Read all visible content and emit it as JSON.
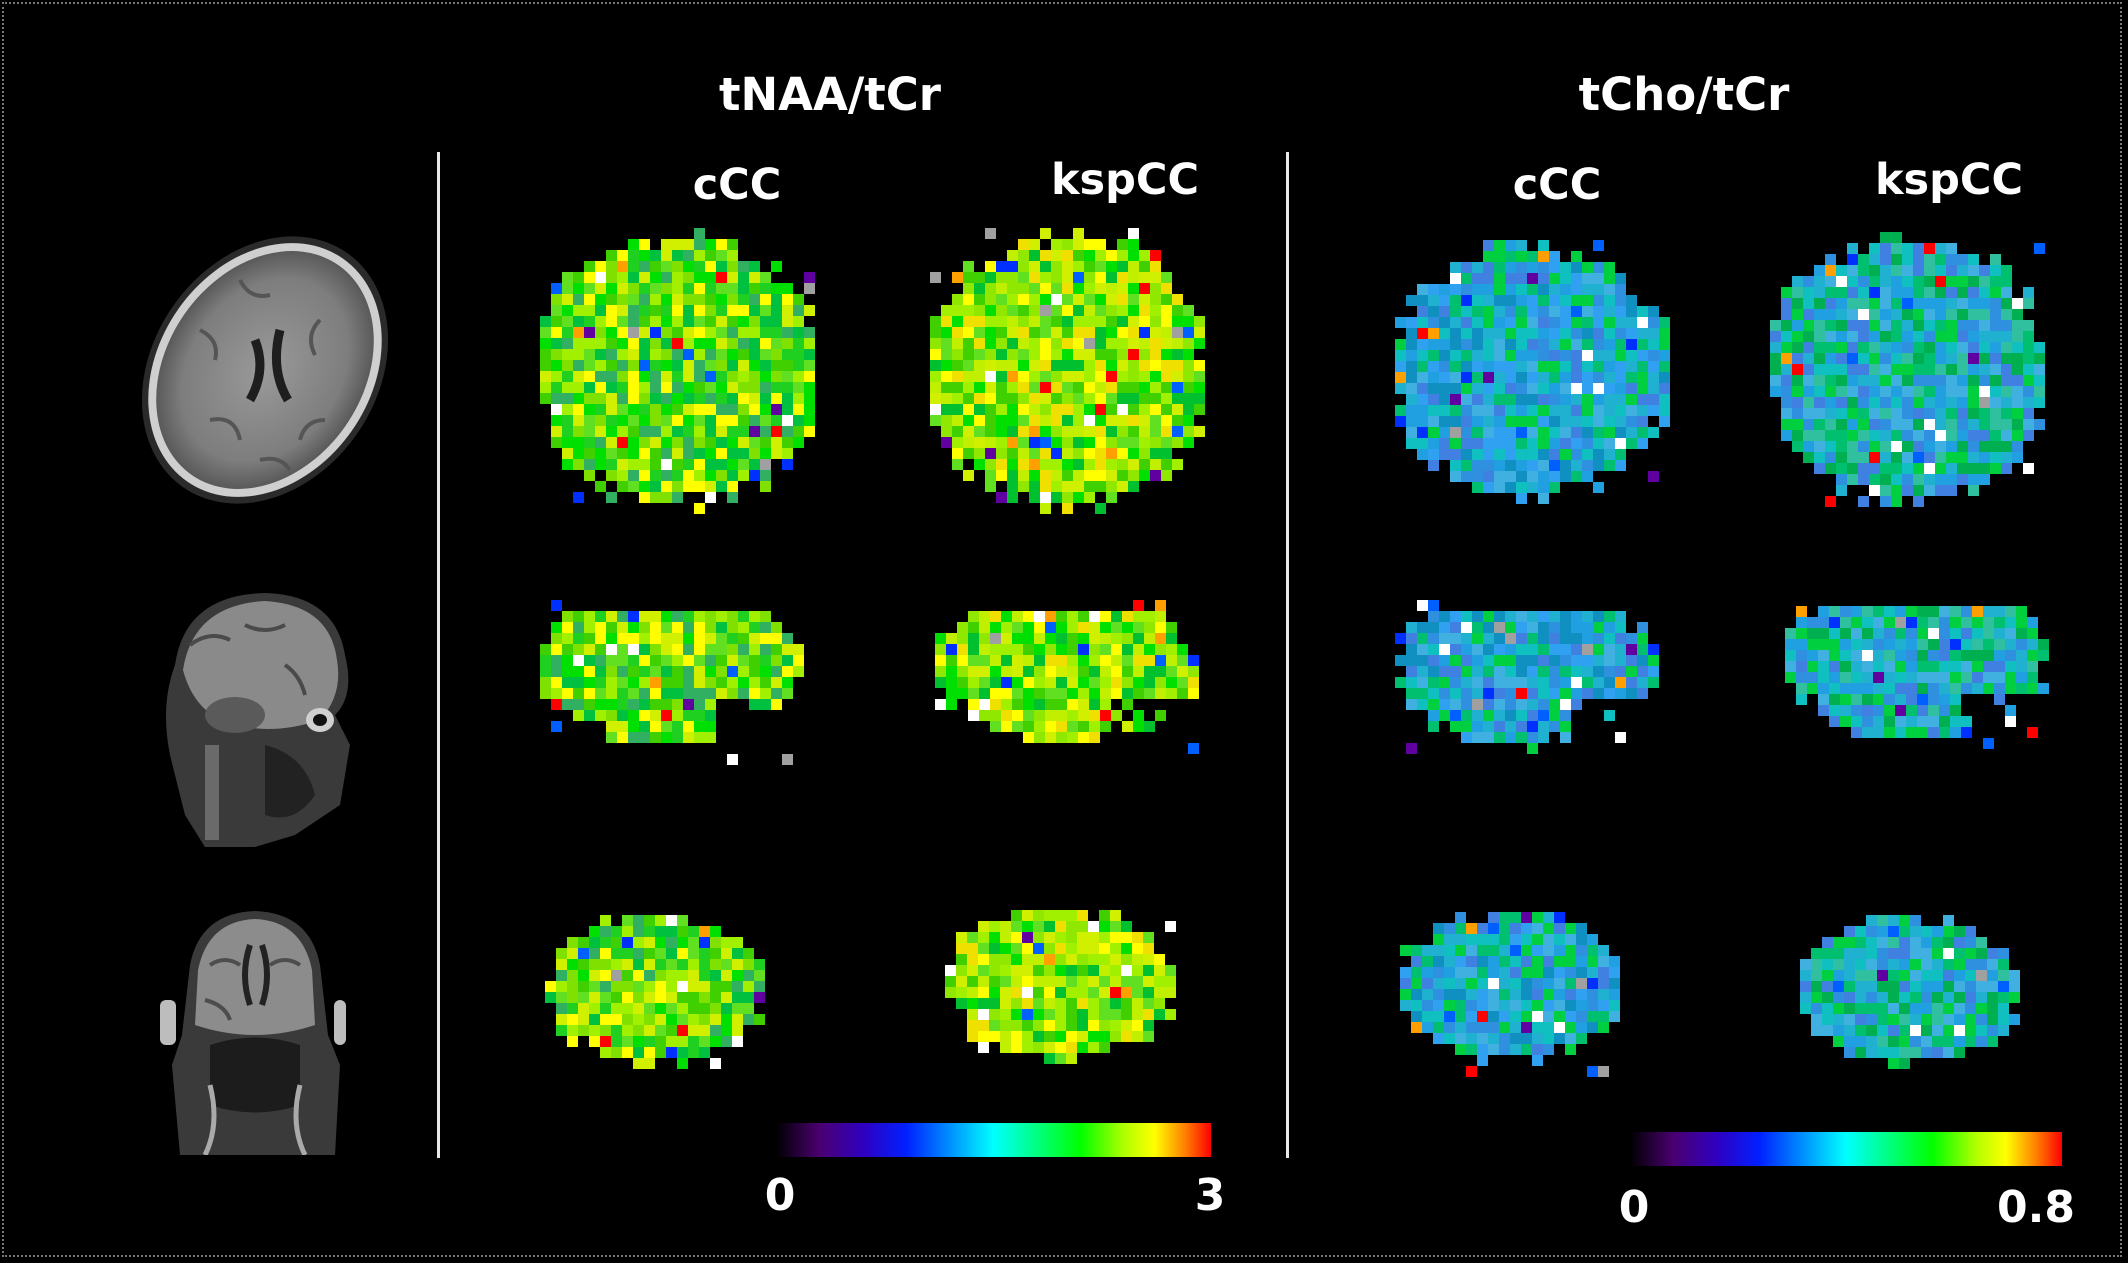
{
  "groups": [
    {
      "title": "tNAA/tCr",
      "columns": [
        "cCC",
        "kspCC"
      ],
      "colorbar": {
        "min": "0",
        "max": "3"
      }
    },
    {
      "title": "tCho/tCr",
      "columns": [
        "cCC",
        "kspCC"
      ],
      "colorbar": {
        "min": "0",
        "max": "0.8"
      }
    }
  ],
  "views": [
    "axial",
    "sagittal",
    "coronal"
  ],
  "colormap": [
    "#000000",
    "#3a0050",
    "#5a00a0",
    "#0010ff",
    "#0090ff",
    "#00ffff",
    "#00ff80",
    "#00ff00",
    "#a0ff00",
    "#ffff00",
    "#ff8000",
    "#ff0000"
  ]
}
